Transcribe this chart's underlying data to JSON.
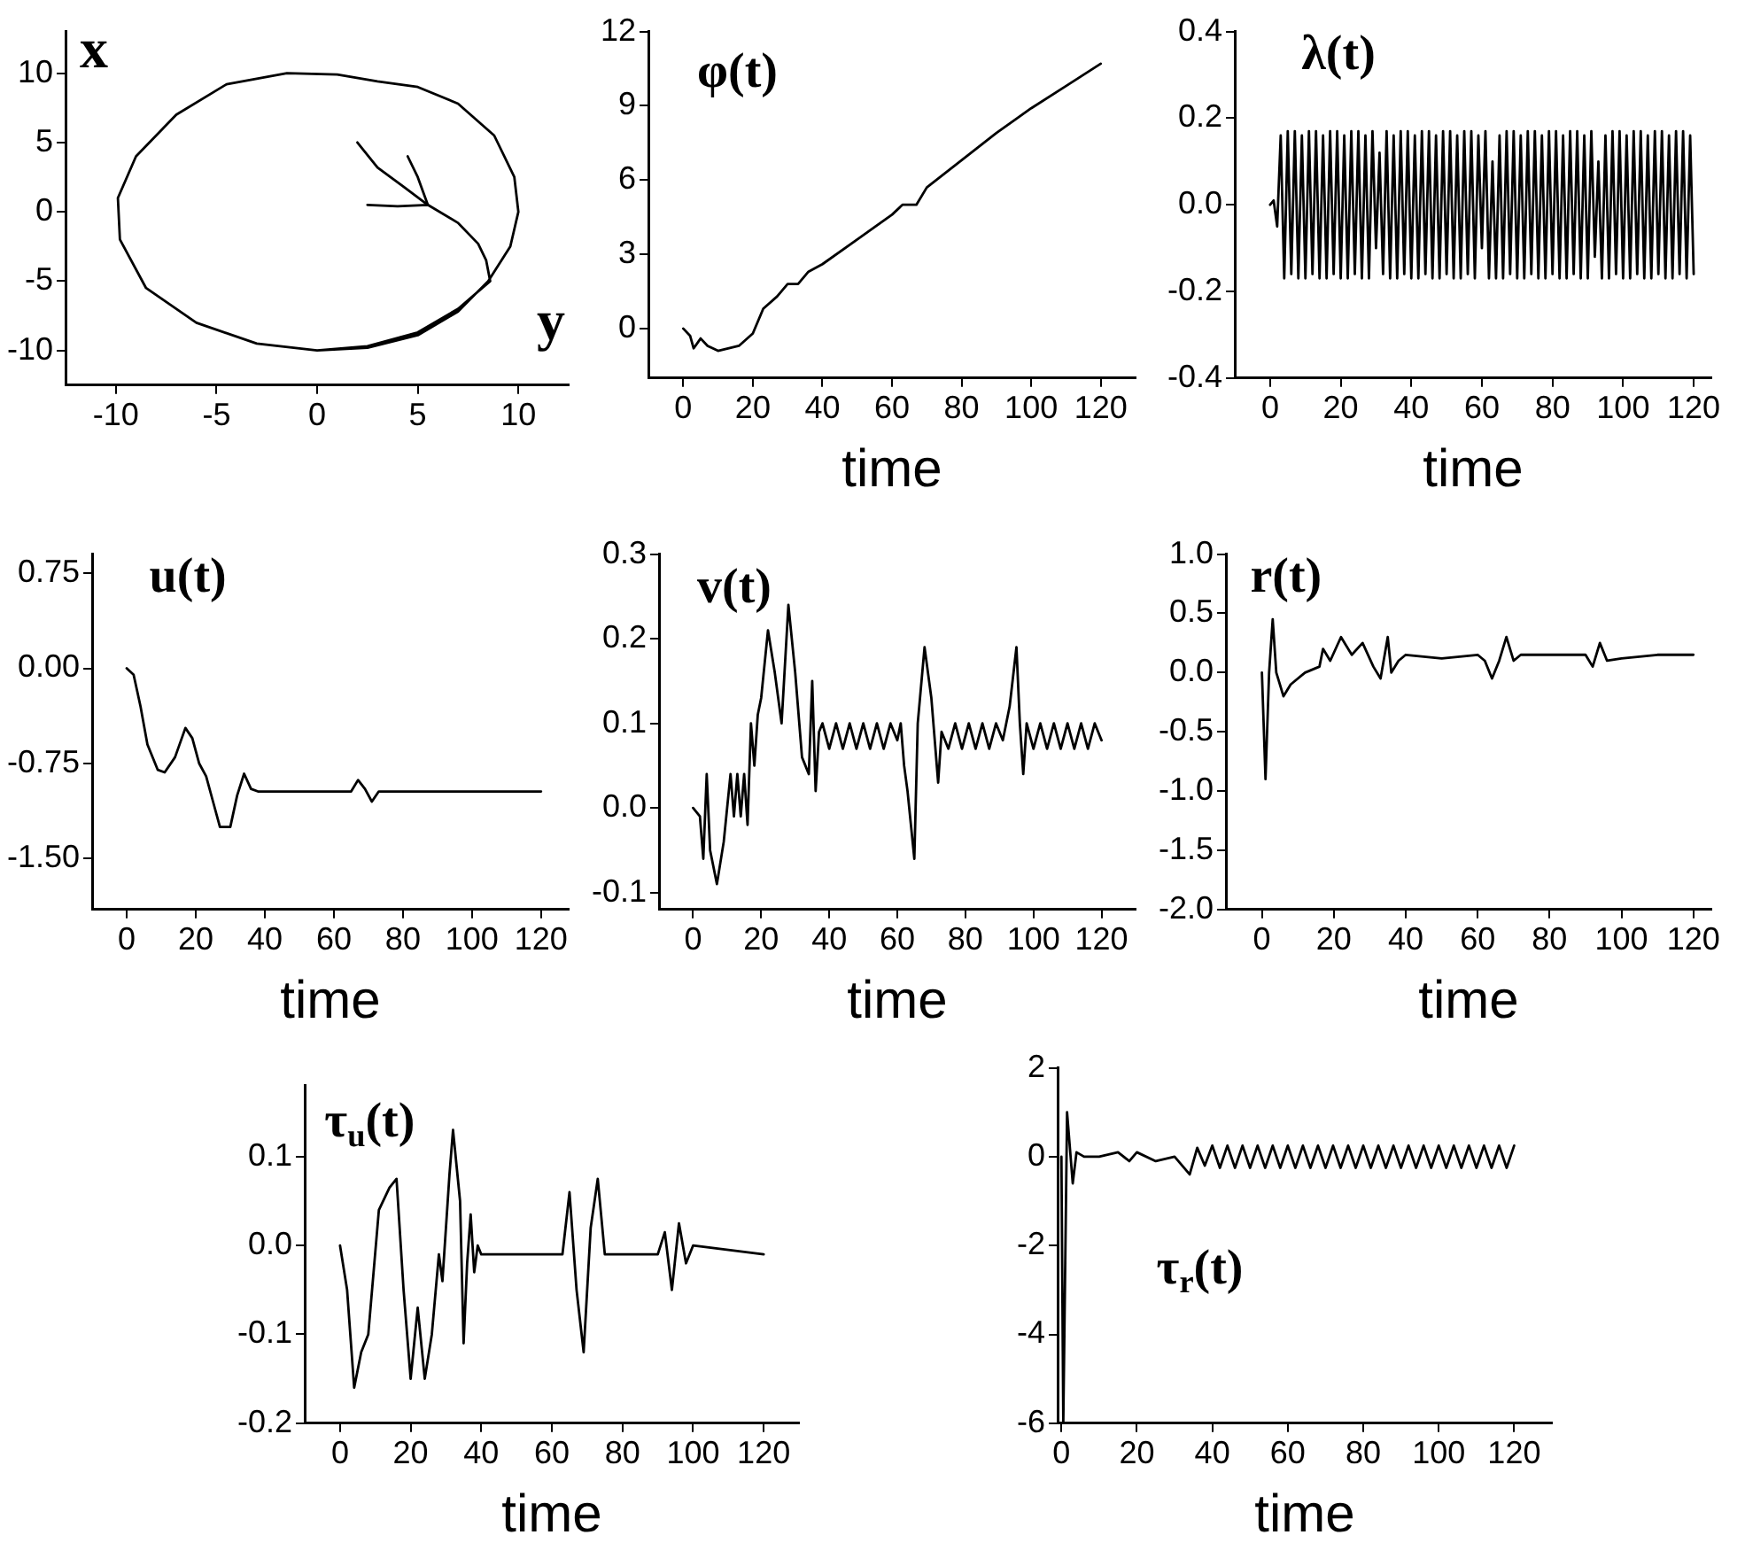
{
  "chart_data": [
    {
      "type": "line",
      "xlabel": "y",
      "ylabel": "x",
      "series": [
        {
          "color": "#000000",
          "x": [
            2,
            3,
            4.3,
            5.5
          ],
          "values": [
            5,
            3.2,
            1.8,
            0.5
          ]
        },
        {
          "color": "#000000",
          "x": [
            4.5,
            5,
            5.5
          ],
          "values": [
            4,
            2.5,
            0.5
          ]
        },
        {
          "color": "#000000",
          "x": [
            2.5,
            4,
            5.5,
            7,
            8,
            8.4,
            8.6,
            7,
            5,
            2.5,
            0,
            -3,
            -6,
            -8.5,
            -9.8,
            -9.9,
            -9,
            -7,
            -4.5,
            -1.5,
            1,
            3,
            5,
            7,
            8.8,
            9.8,
            10,
            9.6,
            8.5,
            7,
            5,
            2.5,
            0
          ],
          "values": [
            0.5,
            0.4,
            0.5,
            -0.8,
            -2.3,
            -3.5,
            -5,
            -7,
            -8.7,
            -9.7,
            -10,
            -9.5,
            -8,
            -5.5,
            -2,
            1,
            4,
            7,
            9.2,
            10,
            9.9,
            9.4,
            9,
            7.8,
            5.5,
            2.5,
            0,
            -2.5,
            -5,
            -7.2,
            -8.9,
            -9.8,
            -10
          ]
        }
      ],
      "xlim": [
        -12.5,
        12.5
      ],
      "ylim": [
        -12.5,
        13
      ],
      "xticks": [
        -10,
        -5,
        0,
        5,
        10
      ],
      "yticks": [
        -10,
        -5,
        0,
        5,
        10
      ]
    },
    {
      "type": "line",
      "title": "φ(t)",
      "xlabel": "time",
      "color": "#000000",
      "x": [
        0,
        2,
        3,
        5,
        7,
        10,
        16,
        20,
        23,
        27,
        30,
        33,
        36,
        40,
        50,
        60,
        63,
        67,
        70,
        80,
        90,
        96,
        100,
        110,
        120
      ],
      "values": [
        0,
        -0.3,
        -0.8,
        -0.4,
        -0.7,
        -0.9,
        -0.7,
        -0.2,
        0.8,
        1.3,
        1.8,
        1.8,
        2.3,
        2.6,
        3.6,
        4.6,
        5,
        5,
        5.7,
        6.8,
        7.9,
        8.5,
        8.9,
        9.8,
        10.7
      ],
      "xlim": [
        -10,
        130
      ],
      "ylim": [
        -2,
        12
      ],
      "xticks": [
        0,
        20,
        40,
        60,
        80,
        100,
        120
      ],
      "yticks": [
        0,
        3,
        6,
        9,
        12
      ]
    },
    {
      "type": "line",
      "title": "λ(t)",
      "xlabel": "time",
      "color": "#000000",
      "x": [
        0,
        1,
        2,
        3,
        4,
        5,
        6,
        7,
        8,
        9,
        10,
        11,
        12,
        13,
        14,
        15,
        16,
        17,
        18,
        19,
        20,
        21,
        22,
        23,
        24,
        25,
        26,
        27,
        28,
        29,
        30,
        31,
        32,
        33,
        34,
        35,
        36,
        37,
        38,
        39,
        40,
        41,
        42,
        43,
        44,
        45,
        46,
        47,
        48,
        49,
        50,
        51,
        52,
        53,
        54,
        55,
        56,
        57,
        58,
        59,
        60,
        61,
        62,
        63,
        64,
        65,
        66,
        67,
        68,
        69,
        70,
        71,
        72,
        73,
        74,
        75,
        76,
        77,
        78,
        79,
        80,
        81,
        82,
        83,
        84,
        85,
        86,
        87,
        88,
        89,
        90,
        91,
        92,
        93,
        94,
        95,
        96,
        97,
        98,
        99,
        100,
        101,
        102,
        103,
        104,
        105,
        106,
        107,
        108,
        109,
        110,
        111,
        112,
        113,
        114,
        115,
        116,
        117,
        118,
        119,
        120
      ],
      "values": [
        0,
        0.01,
        -0.05,
        0.16,
        -0.17,
        0.17,
        -0.16,
        0.17,
        -0.17,
        0.16,
        -0.17,
        0.17,
        -0.16,
        0.17,
        -0.17,
        0.16,
        -0.17,
        0.17,
        -0.16,
        0.17,
        -0.17,
        0.16,
        -0.17,
        0.17,
        -0.16,
        0.17,
        -0.17,
        0.16,
        -0.17,
        0.17,
        -0.1,
        0.12,
        -0.16,
        0.17,
        -0.17,
        0.16,
        -0.17,
        0.17,
        -0.16,
        0.17,
        -0.17,
        0.16,
        -0.17,
        0.17,
        -0.16,
        0.17,
        -0.17,
        0.16,
        -0.17,
        0.17,
        -0.16,
        0.17,
        -0.17,
        0.16,
        -0.17,
        0.17,
        -0.16,
        0.17,
        -0.17,
        0.16,
        -0.1,
        0.17,
        -0.17,
        0.1,
        -0.17,
        0.16,
        -0.17,
        0.17,
        -0.16,
        0.17,
        -0.17,
        0.16,
        -0.17,
        0.17,
        -0.16,
        0.17,
        -0.17,
        0.16,
        -0.17,
        0.17,
        -0.16,
        0.17,
        -0.17,
        0.16,
        -0.17,
        0.17,
        -0.16,
        0.17,
        -0.17,
        0.16,
        -0.17,
        0.17,
        -0.12,
        0.1,
        -0.17,
        0.16,
        -0.17,
        0.17,
        -0.16,
        0.17,
        -0.17,
        0.16,
        -0.17,
        0.17,
        -0.16,
        0.17,
        -0.17,
        0.16,
        -0.17,
        0.17,
        -0.16,
        0.17,
        -0.17,
        0.16,
        -0.17,
        0.17,
        -0.16,
        0.17,
        -0.17,
        0.16,
        -0.16
      ],
      "xlim": [
        -10,
        125
      ],
      "ylim": [
        -0.4,
        0.4
      ],
      "xticks": [
        0,
        20,
        40,
        60,
        80,
        100,
        120
      ],
      "yticks": [
        -0.4,
        -0.2,
        {
          "value": 0,
          "label": "0.0"
        },
        0.2,
        0.4
      ]
    },
    {
      "type": "line",
      "title": "u(t)",
      "xlabel": "time",
      "color": "#000000",
      "x": [
        0,
        2,
        4,
        6,
        9,
        11,
        14,
        17,
        19,
        21,
        23,
        25,
        27,
        30,
        32,
        34,
        36,
        38,
        40,
        65,
        67,
        69,
        71,
        73,
        120
      ],
      "values": [
        0,
        -0.05,
        -0.3,
        -0.6,
        -0.8,
        -0.82,
        -0.7,
        -0.47,
        -0.55,
        -0.75,
        -0.85,
        -1.05,
        -1.25,
        -1.25,
        -1.0,
        -0.83,
        -0.95,
        -0.97,
        -0.97,
        -0.97,
        -0.88,
        -0.95,
        -1.05,
        -0.97,
        -0.97
      ],
      "xlim": [
        -10,
        128
      ],
      "ylim": [
        -1.9,
        0.9
      ],
      "xticks": [
        0,
        20,
        40,
        60,
        80,
        100,
        120
      ],
      "yticks": [
        {
          "value": -1.5,
          "label": "-1.50"
        },
        {
          "value": -0.75,
          "label": "-0.75"
        },
        {
          "value": 0,
          "label": "0.00"
        },
        {
          "value": 0.75,
          "label": "0.75"
        }
      ]
    },
    {
      "type": "line",
      "title": "v(t)",
      "xlabel": "time",
      "color": "#000000",
      "x": [
        0,
        2,
        3,
        4,
        5,
        7,
        9,
        10,
        11,
        12,
        13,
        14,
        15,
        16,
        17,
        18,
        19,
        20,
        22,
        24,
        26,
        28,
        30,
        32,
        34,
        35,
        36,
        37,
        38,
        40,
        42,
        44,
        46,
        48,
        50,
        52,
        54,
        56,
        58,
        60,
        61,
        62,
        63,
        65,
        66,
        68,
        70,
        72,
        73,
        75,
        77,
        79,
        81,
        83,
        85,
        87,
        89,
        91,
        93,
        95,
        96,
        97,
        98,
        100,
        102,
        104,
        106,
        108,
        110,
        112,
        114,
        116,
        118,
        120
      ],
      "values": [
        0,
        -0.01,
        -0.06,
        0.04,
        -0.05,
        -0.09,
        -0.04,
        0,
        0.04,
        -0.01,
        0.04,
        -0.01,
        0.04,
        -0.02,
        0.1,
        0.05,
        0.11,
        0.13,
        0.21,
        0.16,
        0.1,
        0.24,
        0.16,
        0.06,
        0.04,
        0.15,
        0.02,
        0.09,
        0.1,
        0.07,
        0.1,
        0.07,
        0.1,
        0.07,
        0.1,
        0.07,
        0.1,
        0.07,
        0.1,
        0.08,
        0.1,
        0.05,
        0.02,
        -0.06,
        0.1,
        0.19,
        0.13,
        0.03,
        0.09,
        0.07,
        0.1,
        0.07,
        0.1,
        0.07,
        0.1,
        0.07,
        0.1,
        0.08,
        0.12,
        0.19,
        0.1,
        0.04,
        0.1,
        0.07,
        0.1,
        0.07,
        0.1,
        0.07,
        0.1,
        0.07,
        0.1,
        0.07,
        0.1,
        0.08
      ],
      "xlim": [
        -10,
        130
      ],
      "ylim": [
        -0.12,
        0.3
      ],
      "xticks": [
        0,
        20,
        40,
        60,
        80,
        100,
        120
      ],
      "yticks": [
        -0.1,
        {
          "value": 0,
          "label": "0.0"
        },
        0.1,
        0.2,
        0.3
      ]
    },
    {
      "type": "line",
      "title": "r(t)",
      "xlabel": "time",
      "color": "#000000",
      "x": [
        0,
        1,
        2,
        3,
        4,
        6,
        8,
        12,
        16,
        17,
        19,
        22,
        25,
        28,
        31,
        33,
        35,
        36,
        38,
        40,
        50,
        60,
        62,
        64,
        66,
        68,
        70,
        72,
        90,
        92,
        94,
        96,
        100,
        110,
        120
      ],
      "values": [
        0,
        -0.9,
        0,
        0.45,
        0,
        -0.2,
        -0.1,
        0,
        0.05,
        0.2,
        0.1,
        0.3,
        0.15,
        0.25,
        0.05,
        -0.05,
        0.3,
        0,
        0.1,
        0.15,
        0.12,
        0.15,
        0.1,
        -0.05,
        0.1,
        0.3,
        0.1,
        0.15,
        0.15,
        0.05,
        0.25,
        0.1,
        0.12,
        0.15,
        0.15
      ],
      "xlim": [
        -10,
        125
      ],
      "ylim": [
        -2,
        1
      ],
      "xticks": [
        0,
        20,
        40,
        60,
        80,
        100,
        120
      ],
      "yticks": [
        {
          "value": -2,
          "label": "-2.0"
        },
        -1.5,
        {
          "value": -1,
          "label": "-1.0"
        },
        -0.5,
        {
          "value": 0,
          "label": "0.0"
        },
        0.5,
        {
          "value": 1,
          "label": "1.0"
        }
      ]
    },
    {
      "type": "line",
      "title": "τ$_{u}$(t)",
      "xlabel": "time",
      "color": "#000000",
      "x": [
        0,
        2,
        4,
        6,
        8,
        11,
        14,
        16,
        18,
        20,
        22,
        24,
        26,
        28,
        29,
        31,
        32,
        34,
        35,
        36,
        37,
        38,
        39,
        40,
        60,
        63,
        65,
        67,
        69,
        71,
        73,
        75,
        90,
        92,
        94,
        96,
        98,
        100,
        120
      ],
      "values": [
        0,
        -0.05,
        -0.16,
        -0.12,
        -0.1,
        0.04,
        0.065,
        0.075,
        -0.05,
        -0.15,
        -0.07,
        -0.15,
        -0.1,
        -0.01,
        -0.04,
        0.08,
        0.13,
        0.05,
        -0.11,
        -0.02,
        0.035,
        -0.03,
        0,
        -0.01,
        -0.01,
        -0.01,
        0.06,
        -0.05,
        -0.12,
        0.02,
        0.075,
        -0.01,
        -0.01,
        0.015,
        -0.05,
        0.025,
        -0.02,
        0,
        -0.01
      ],
      "xlim": [
        -10,
        130
      ],
      "ylim": [
        -0.2,
        0.18
      ],
      "xticks": [
        0,
        20,
        40,
        60,
        80,
        100,
        120
      ],
      "yticks": [
        -0.2,
        -0.1,
        {
          "value": 0,
          "label": "0.0"
        },
        0.1
      ]
    },
    {
      "type": "line",
      "title": "τ$_{r}$(t)",
      "xlabel": "time",
      "color": "#000000",
      "x": [
        0,
        0.5,
        1.5,
        3,
        4,
        6,
        10,
        15,
        18,
        20,
        25,
        30,
        34,
        36,
        38,
        40,
        42,
        44,
        46,
        48,
        50,
        52,
        54,
        56,
        58,
        60,
        62,
        64,
        66,
        68,
        70,
        72,
        74,
        76,
        78,
        80,
        82,
        84,
        86,
        88,
        90,
        92,
        94,
        96,
        98,
        100,
        102,
        104,
        106,
        108,
        110,
        112,
        114,
        116,
        118,
        120
      ],
      "values": [
        0,
        -6,
        1,
        -0.6,
        0.1,
        0,
        0,
        0.1,
        -0.1,
        0.1,
        -0.1,
        0,
        -0.4,
        0.2,
        -0.2,
        0.25,
        -0.25,
        0.25,
        -0.25,
        0.25,
        -0.25,
        0.25,
        -0.25,
        0.25,
        -0.25,
        0.25,
        -0.25,
        0.25,
        -0.25,
        0.25,
        -0.25,
        0.25,
        -0.25,
        0.25,
        -0.25,
        0.25,
        -0.25,
        0.25,
        -0.25,
        0.25,
        -0.25,
        0.25,
        -0.25,
        0.25,
        -0.25,
        0.25,
        -0.25,
        0.25,
        -0.25,
        0.25,
        -0.25,
        0.25,
        -0.25,
        0.25,
        -0.25,
        0.25
      ],
      "xlim": [
        -1,
        130
      ],
      "ylim": [
        -6,
        2
      ],
      "xticks": [
        0,
        20,
        40,
        60,
        80,
        100,
        120
      ],
      "yticks": [
        -6,
        -4,
        -2,
        0,
        2
      ]
    }
  ]
}
